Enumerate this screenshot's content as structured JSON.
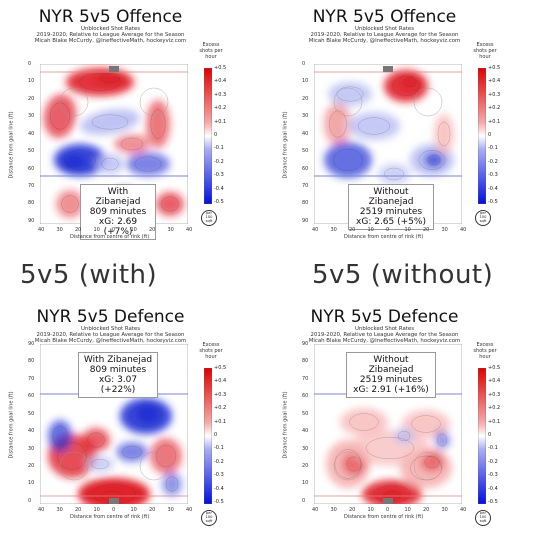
{
  "panels": [
    {
      "title": "NYR 5v5 Offence",
      "sub1": "Unblocked Shot Rates",
      "sub2": "2019-2020, Relative to League Average for the Season",
      "sub3": "Micah Blake McCurdy, @IneffectiveMath, hockeyviz.com",
      "box1": "With Zibanejad",
      "box2": "809 minutes",
      "box3": "xG: 2.69 (+7%)"
    },
    {
      "title": "NYR 5v5 Offence",
      "sub1": "Unblocked Shot Rates",
      "sub2": "2019-2020, Relative to League Average for the Season",
      "sub3": "Micah Blake McCurdy, @IneffectiveMath, hockeyviz.com",
      "box1": "Without Zibanejad",
      "box2": "2519 minutes",
      "box3": "xG: 2.65 (+5%)"
    },
    {
      "title": "NYR 5v5 Defence",
      "sub1": "Unblocked Shot Rates",
      "sub2": "2019-2020, Relative to League Average for the Season",
      "sub3": "Micah Blake McCurdy, @IneffectiveMath, hockeyviz.com",
      "box1": "With Zibanejad",
      "box2": "809 minutes",
      "box3": "xG: 3.07 (+22%)"
    },
    {
      "title": "NYR 5v5 Defence",
      "sub1": "Unblocked Shot Rates",
      "sub2": "2019-2020, Relative to League Average for the Season",
      "sub3": "Micah Blake McCurdy, @IneffectiveMath, hockeyviz.com",
      "box1": "Without Zibanejad",
      "box2": "2519 minutes",
      "box3": "xG: 2.91 (+16%)"
    }
  ],
  "labels": {
    "with": "5v5 (with)",
    "without": "5v5 (without)"
  },
  "colorbar": {
    "title": "Excess shots per hour",
    "ticks": [
      "+0.5",
      "+0.4",
      "+0.3",
      "+0.2",
      "+0.1",
      "0",
      "-0.1",
      "-0.2",
      "-0.3",
      "-0.4",
      "-0.5"
    ]
  },
  "unit": {
    "l1": "per",
    "l2": "100",
    "l3": "sqft"
  },
  "axes": {
    "xlabel": "Distance from centre of rink (ft)",
    "ylabel": "Distance from goal line (ft)",
    "xticks": [
      "40",
      "30",
      "20",
      "10",
      "0",
      "10",
      "20",
      "30",
      "40"
    ],
    "yticks": [
      "0",
      "10",
      "20",
      "30",
      "40",
      "50",
      "60",
      "70",
      "80",
      "90"
    ]
  },
  "colors": {
    "red": "#e0202a",
    "blue": "#2433d6",
    "redlight": "#f7b8b8",
    "bluelight": "#b8bcf2"
  },
  "chart_data": {
    "type": "heatmap",
    "xlabel": "Distance from centre of rink (ft)",
    "ylabel": "Distance from goal line (ft)",
    "xlim": [
      -42,
      42
    ],
    "ylim": [
      0,
      90
    ],
    "colorbar_range": [
      -0.5,
      0.5
    ],
    "panels": [
      "NYR 5v5 Offence, With Zibanejad",
      "NYR 5v5 Offence, Without Zibanejad",
      "NYR 5v5 Defence, With Zibanejad",
      "NYR 5v5 Defence, Without Zibanejad"
    ]
  }
}
